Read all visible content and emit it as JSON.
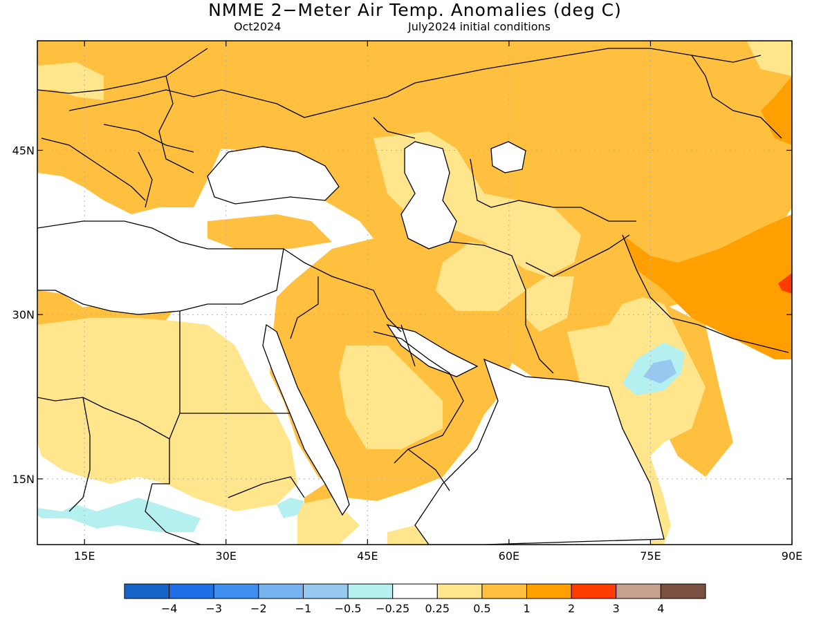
{
  "header": {
    "title": "NMME 2−Meter Air Temp. Anomalies (deg C)",
    "target_month": "Oct2024",
    "initial_conditions": "July2024 initial conditions"
  },
  "map": {
    "lon_range": [
      10,
      90
    ],
    "lat_range": [
      9,
      55
    ],
    "lon_ticks": [
      {
        "value": 15,
        "label": "15E"
      },
      {
        "value": 30,
        "label": "30E"
      },
      {
        "value": 45,
        "label": "45E"
      },
      {
        "value": 60,
        "label": "60E"
      },
      {
        "value": 75,
        "label": "75E"
      },
      {
        "value": 90,
        "label": "90E"
      }
    ],
    "lat_ticks": [
      {
        "value": 15,
        "label": "15N"
      },
      {
        "value": 30,
        "label": "30N"
      },
      {
        "value": 45,
        "label": "45N"
      }
    ]
  },
  "colorbar": {
    "colors": [
      "#1565c8",
      "#1e6fe8",
      "#3e8ff0",
      "#78b4f0",
      "#96c8f0",
      "#b4f0f0",
      "#ffffff",
      "#ffe68c",
      "#ffc040",
      "#ffa000",
      "#ff3c00",
      "#c8a090",
      "#7a5040"
    ],
    "labels": [
      "−4",
      "−3",
      "−2",
      "−1",
      "−0.5",
      "−0.25",
      "0.25",
      "0.5",
      "1",
      "2",
      "3",
      "4"
    ]
  }
}
